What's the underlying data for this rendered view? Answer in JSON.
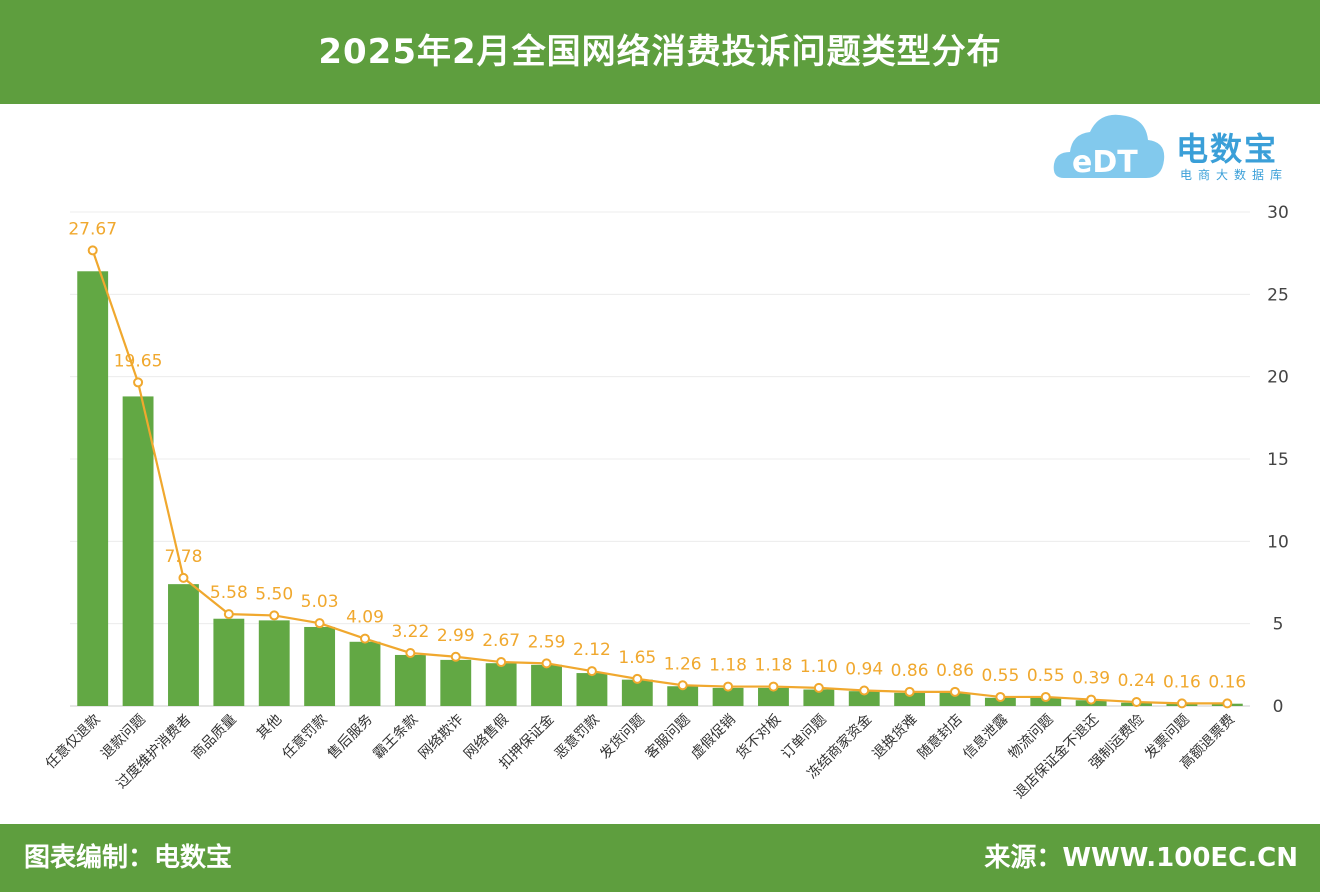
{
  "title": "2025年2月全国网络消费投诉问题类型分布",
  "footer": {
    "left": "图表编制：电数宝",
    "right": "来源：WWW.100EC.CN"
  },
  "logo": {
    "name": "电数宝",
    "mark": "eDT",
    "sub": "电商大数据库"
  },
  "colors": {
    "header": "#5e9e3e",
    "bar": "#62a844",
    "line": "#f0a82e",
    "logo": "#3a9fd8"
  },
  "chart_data": {
    "type": "bar",
    "categories": [
      "任意仅退款",
      "退款问题",
      "过度维护消费者",
      "商品质量",
      "其他",
      "任意罚款",
      "售后服务",
      "霸王条款",
      "网络欺诈",
      "网络售假",
      "扣押保证金",
      "恶意罚款",
      "发货问题",
      "客服问题",
      "虚假促销",
      "货不对板",
      "订单问题",
      "冻结商家资金",
      "退换货难",
      "随意封店",
      "信息泄露",
      "物流问题",
      "退店保证金不退还",
      "强制运费险",
      "发票问题",
      "高额退票费"
    ],
    "series": [
      {
        "type": "bar",
        "values": [
          26.4,
          18.8,
          7.4,
          5.3,
          5.2,
          4.8,
          3.9,
          3.1,
          2.8,
          2.6,
          2.5,
          2.0,
          1.6,
          1.2,
          1.1,
          1.1,
          1.0,
          0.9,
          0.8,
          0.8,
          0.5,
          0.5,
          0.35,
          0.2,
          0.15,
          0.14
        ]
      },
      {
        "type": "line",
        "values": [
          27.67,
          19.65,
          7.78,
          5.58,
          5.5,
          5.03,
          4.09,
          3.22,
          2.99,
          2.67,
          2.59,
          2.12,
          1.65,
          1.26,
          1.18,
          1.18,
          1.1,
          0.94,
          0.86,
          0.86,
          0.55,
          0.55,
          0.39,
          0.24,
          0.16,
          0.16
        ]
      }
    ],
    "data_labels": [
      "27.67",
      "19.65",
      "7.78",
      "5.58",
      "5.50",
      "5.03",
      "4.09",
      "3.22",
      "2.99",
      "2.67",
      "2.59",
      "2.12",
      "1.65",
      "1.26",
      "1.18",
      "1.18",
      "1.10",
      "0.94",
      "0.86",
      "0.86",
      "0.55",
      "0.55",
      "0.39",
      "0.24",
      "0.16",
      "0.16"
    ],
    "y_axis": {
      "position": "right",
      "min": 0,
      "max": 30,
      "ticks": [
        0,
        5,
        10,
        15,
        20,
        25,
        30
      ]
    },
    "grid": true,
    "legend": "none"
  }
}
